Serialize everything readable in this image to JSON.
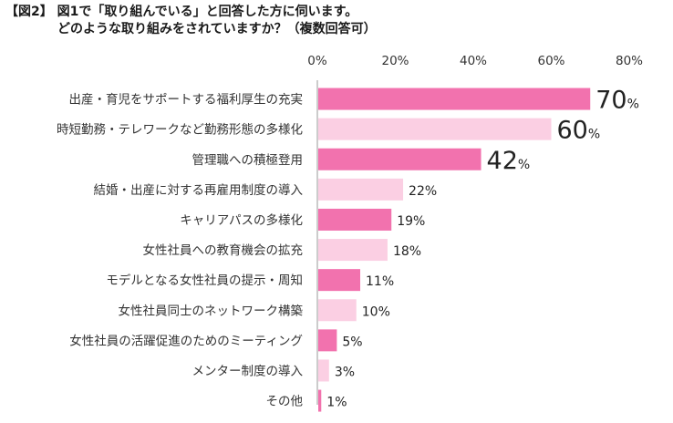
{
  "chart_data": {
    "type": "bar",
    "orientation": "horizontal",
    "title": "【図2】 図1で「取り組んでいる」と回答した方に伺います。",
    "subtitle": "どのような取り組みをされていますか？（複数回答可）",
    "categories": [
      "出産・育児をサポートする福利厚生の充実",
      "時短勤務・テレワークなど勤務形態の多様化",
      "管理職への積極登用",
      "結婚・出産に対する再雇用制度の導入",
      "キャリアパスの多様化",
      "女性社員への教育機会の拡充",
      "モデルとなる女性社員の提示・周知",
      "女性社員同士のネットワーク構築",
      "女性社員の活躍促進のためのミーティング",
      "メンター制度の導入",
      "その他"
    ],
    "values": [
      70,
      60,
      42,
      22,
      19,
      18,
      11,
      10,
      5,
      3,
      1
    ],
    "value_suffix": "%",
    "xlim": [
      0,
      80
    ],
    "x_ticks": [
      "0%",
      "20%",
      "40%",
      "60%",
      "80%"
    ],
    "tick_values": [
      0,
      20,
      40,
      60,
      80
    ],
    "grid": false,
    "legend": "none",
    "bar_colors": [
      "#f272ae",
      "#fbcfe3"
    ],
    "highlight_count": 3
  }
}
